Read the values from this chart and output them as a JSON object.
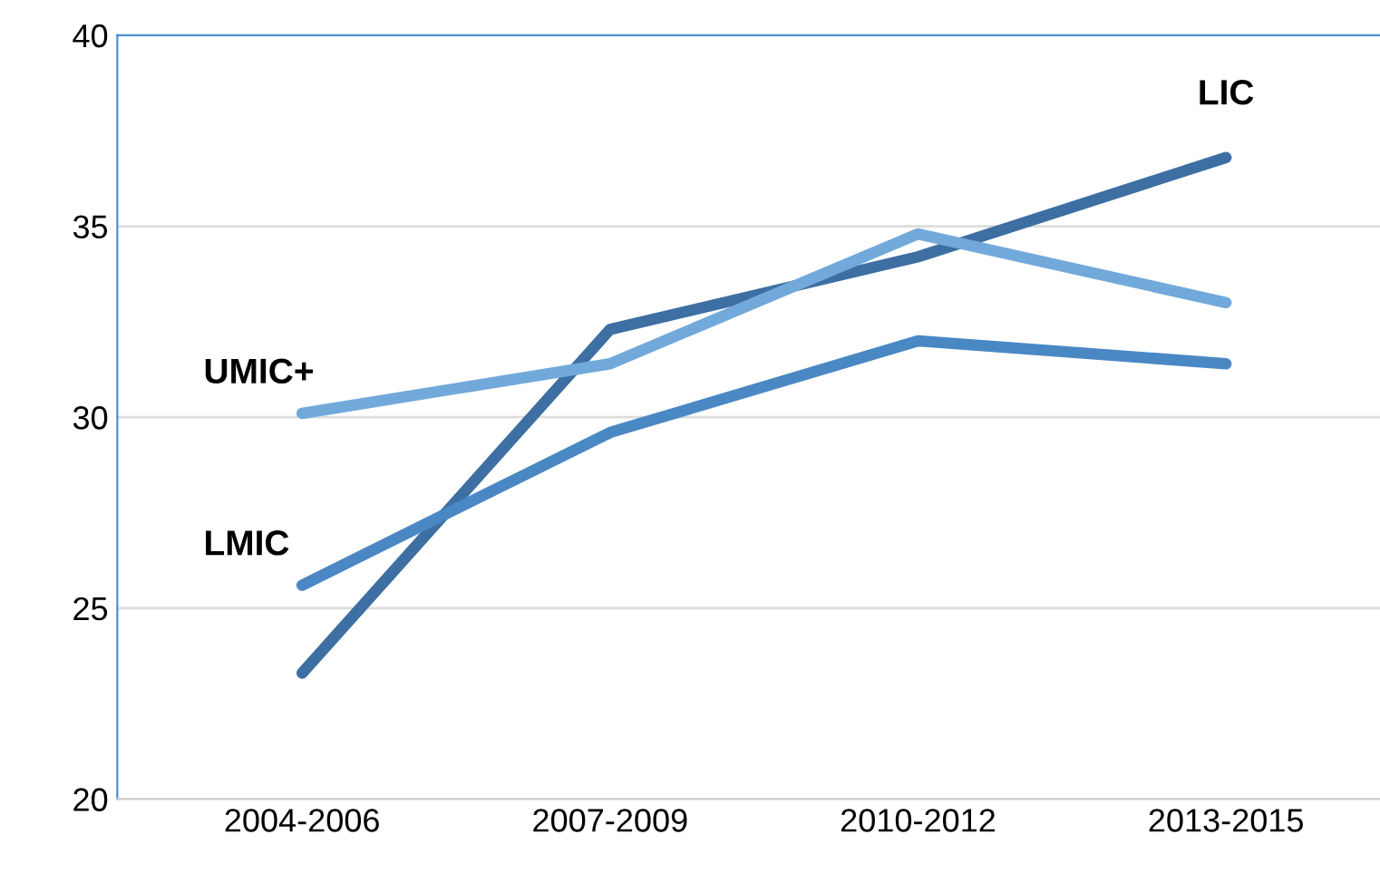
{
  "chart_data": {
    "type": "line",
    "categories": [
      "2004-2006",
      "2007-2009",
      "2010-2012",
      "2013-2015"
    ],
    "series": [
      {
        "name": "LIC",
        "color": "#3d6fa3",
        "values": [
          23.3,
          32.3,
          34.2,
          36.8
        ]
      },
      {
        "name": "UMIC+",
        "color": "#72a9db",
        "values": [
          30.1,
          31.4,
          34.8,
          33.0
        ]
      },
      {
        "name": "LMIC",
        "color": "#4a88c4",
        "values": [
          25.6,
          29.6,
          32.0,
          31.4
        ]
      }
    ],
    "ylim": [
      20,
      40
    ],
    "yticks": [
      20,
      25,
      30,
      35,
      40
    ],
    "grid": "y",
    "legend": false,
    "marker": "none",
    "line_style": "solid"
  }
}
